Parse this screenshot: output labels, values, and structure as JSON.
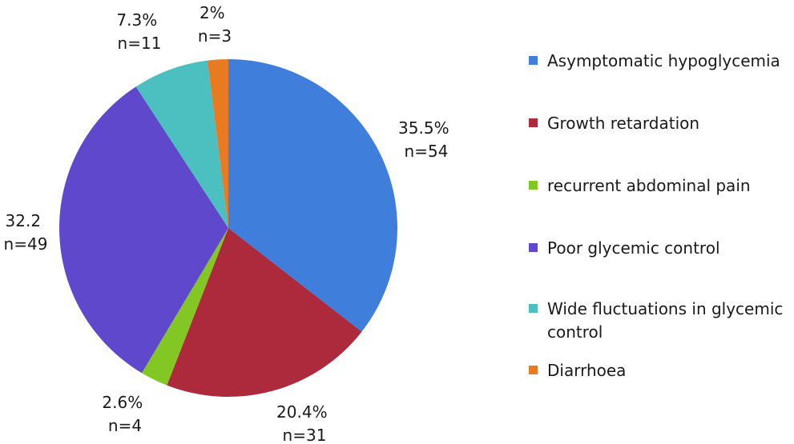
{
  "chart_data": {
    "type": "pie",
    "title": "",
    "categories": [
      "Asymptomatic hypoglycemia",
      "Growth retardation",
      "recurrent abdominal pain",
      "Poor glycemic control",
      "Wide fluctuations in glycemic control",
      "Diarrhoea"
    ],
    "values": [
      54,
      31,
      4,
      49,
      11,
      3
    ],
    "percent_labels": [
      "35.5%",
      "20.4%",
      "2.6%",
      "32.2",
      "7.3%",
      "2%"
    ],
    "count_labels": [
      "n=54",
      "n=31",
      "n=4",
      "n=49",
      "n=11",
      "n=3"
    ],
    "colors": [
      "#3f7fdb",
      "#ad2a3c",
      "#82c723",
      "#5f48cc",
      "#4cc0c0",
      "#e87a22"
    ],
    "start": "12 o'clock",
    "direction": "clockwise",
    "legend_position": "right"
  }
}
